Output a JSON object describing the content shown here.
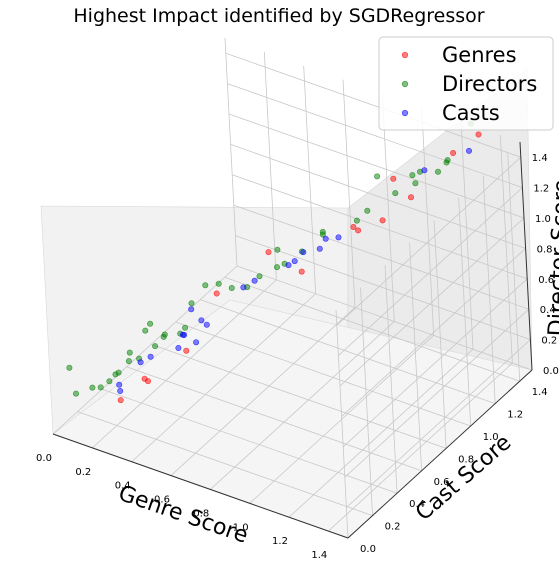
{
  "chart_data": {
    "type": "scatter",
    "projection": "3d",
    "title": "Highest Impact identified by SGDRegressor",
    "xlabel": "Genre Score",
    "ylabel": "Cast Score",
    "zlabel": "Director Score",
    "x_ticks": [
      "0.0",
      "0.2",
      "0.4",
      "0.6",
      "0.8",
      "1.0",
      "1.2",
      "1.4"
    ],
    "y_ticks": [
      "0.0",
      "0.2",
      "0.4",
      "0.6",
      "0.8",
      "1.0",
      "1.2",
      "1.4"
    ],
    "z_ticks": [
      "0.0",
      "0.2",
      "0.4",
      "0.6",
      "0.8",
      "1.0",
      "1.2",
      "1.4"
    ],
    "xlim": [
      0,
      1.5
    ],
    "ylim": [
      0,
      1.5
    ],
    "zlim": [
      0,
      1.5
    ],
    "grid": true,
    "legend_position": "top-right",
    "series": [
      {
        "name": "Genres",
        "color": "#ff0000",
        "points": [
          [
            0.24,
            0.18,
            0.2
          ],
          [
            0.36,
            0.22,
            0.35
          ],
          [
            0.37,
            0.18,
            0.4
          ],
          [
            0.5,
            0.32,
            0.54
          ],
          [
            0.58,
            0.46,
            0.85
          ],
          [
            0.7,
            0.7,
            1.0
          ],
          [
            0.9,
            0.65,
            1.0
          ],
          [
            1.0,
            0.92,
            1.14
          ],
          [
            1.05,
            0.88,
            1.17
          ],
          [
            1.1,
            1.0,
            1.17
          ],
          [
            1.1,
            1.1,
            1.37
          ],
          [
            1.22,
            1.05,
            1.34
          ],
          [
            1.35,
            1.2,
            1.58
          ],
          [
            1.42,
            1.3,
            1.66
          ]
        ]
      },
      {
        "name": "Directors",
        "color": "#008000",
        "points": [
          [
            0.05,
            0.12,
            0.2
          ],
          [
            0.05,
            0.08,
            0.4
          ],
          [
            0.15,
            0.1,
            0.3
          ],
          [
            0.18,
            0.12,
            0.3
          ],
          [
            0.2,
            0.16,
            0.32
          ],
          [
            0.22,
            0.18,
            0.36
          ],
          [
            0.25,
            0.16,
            0.4
          ],
          [
            0.28,
            0.2,
            0.46
          ],
          [
            0.3,
            0.18,
            0.54
          ],
          [
            0.32,
            0.22,
            0.48
          ],
          [
            0.32,
            0.28,
            0.62
          ],
          [
            0.38,
            0.26,
            0.56
          ],
          [
            0.4,
            0.3,
            0.6
          ],
          [
            0.4,
            0.2,
            0.76
          ],
          [
            0.42,
            0.28,
            0.64
          ],
          [
            0.46,
            0.34,
            0.62
          ],
          [
            0.48,
            0.35,
            0.66
          ],
          [
            0.52,
            0.35,
            0.84
          ],
          [
            0.55,
            0.42,
            0.92
          ],
          [
            0.58,
            0.48,
            0.9
          ],
          [
            0.62,
            0.52,
            0.86
          ],
          [
            0.66,
            0.58,
            0.84
          ],
          [
            0.7,
            0.62,
            0.9
          ],
          [
            0.74,
            0.7,
            0.92
          ],
          [
            0.78,
            0.7,
            0.96
          ],
          [
            0.8,
            0.62,
            1.12
          ],
          [
            0.82,
            0.78,
            1.0
          ],
          [
            0.88,
            0.86,
            1.08
          ],
          [
            0.92,
            0.8,
            1.16
          ],
          [
            1.0,
            0.95,
            1.16
          ],
          [
            1.05,
            0.96,
            1.24
          ],
          [
            1.05,
            1.05,
            1.4
          ],
          [
            1.12,
            1.08,
            1.3
          ],
          [
            1.18,
            1.15,
            1.34
          ],
          [
            1.2,
            1.1,
            1.44
          ],
          [
            1.24,
            1.1,
            1.48
          ],
          [
            1.28,
            1.18,
            1.44
          ],
          [
            1.3,
            1.22,
            1.48
          ],
          [
            1.32,
            1.2,
            1.52
          ],
          [
            1.45,
            1.2,
            1.82
          ]
        ]
      },
      {
        "name": "Casts",
        "color": "#0000ff",
        "points": [
          [
            0.24,
            0.18,
            0.26
          ],
          [
            0.25,
            0.16,
            0.32
          ],
          [
            0.34,
            0.2,
            0.48
          ],
          [
            0.38,
            0.22,
            0.52
          ],
          [
            0.46,
            0.32,
            0.54
          ],
          [
            0.48,
            0.34,
            0.62
          ],
          [
            0.5,
            0.3,
            0.66
          ],
          [
            0.54,
            0.34,
            0.6
          ],
          [
            0.55,
            0.3,
            0.85
          ],
          [
            0.56,
            0.4,
            0.68
          ],
          [
            0.6,
            0.3,
            0.8
          ],
          [
            0.66,
            0.55,
            0.86
          ],
          [
            0.7,
            0.58,
            0.9
          ],
          [
            0.8,
            0.7,
            0.96
          ],
          [
            0.8,
            0.75,
            0.95
          ],
          [
            0.84,
            0.76,
            1.02
          ],
          [
            0.9,
            0.8,
            1.04
          ],
          [
            0.92,
            0.82,
            1.1
          ],
          [
            1.0,
            0.8,
            1.16
          ],
          [
            1.25,
            1.12,
            1.48
          ],
          [
            1.4,
            1.25,
            1.58
          ]
        ]
      }
    ]
  }
}
